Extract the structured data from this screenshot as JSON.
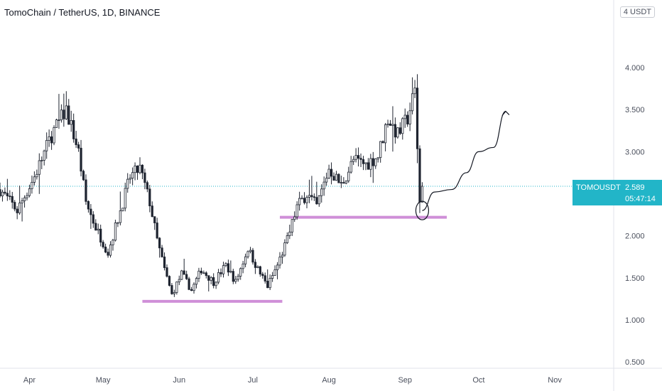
{
  "header": {
    "title": "TomoChain / TetherUS, 1D, BINANCE",
    "unit_label": "USDT",
    "unit_prefix": "4"
  },
  "price_tag": {
    "symbol": "TOMOUSDT",
    "price": "2.589",
    "countdown": "05:47:14",
    "color": "#22b5c8"
  },
  "colors": {
    "candle": "#1f2430",
    "support": "#cf8fd8",
    "price_line": "#22b5c8",
    "axis_text": "#4a4f5c"
  },
  "chart_data": {
    "type": "candlestick",
    "title": "TomoChain / TetherUS, 1D, BINANCE",
    "y_ticks": [
      "4.000",
      "3.500",
      "3.000",
      "2.500",
      "2.000",
      "1.500",
      "1.000",
      "0.500"
    ],
    "y_tick_values": [
      4.0,
      3.5,
      3.0,
      2.5,
      2.0,
      1.5,
      1.0,
      0.5
    ],
    "x_ticks": [
      "Apr",
      "May",
      "Jun",
      "Jul",
      "Aug",
      "Sep",
      "Oct",
      "Nov"
    ],
    "ylim": [
      0.45,
      4.55
    ],
    "x_range": [
      "2021-03-20",
      "2021-11-25"
    ],
    "last_price": 2.589,
    "support_levels": [
      {
        "value": 1.22,
        "from": "2021-05-17",
        "to": "2021-07-13"
      },
      {
        "value": 2.22,
        "from": "2021-07-12",
        "to": "2021-09-18"
      }
    ],
    "waypoints": [
      [
        "2021-03-20",
        2.55
      ],
      [
        "2021-03-27",
        2.3
      ],
      [
        "2021-04-03",
        2.7
      ],
      [
        "2021-04-10",
        3.2
      ],
      [
        "2021-04-16",
        3.5
      ],
      [
        "2021-04-21",
        3.0
      ],
      [
        "2021-04-24",
        2.4
      ],
      [
        "2021-04-28",
        2.1
      ],
      [
        "2021-05-03",
        1.8
      ],
      [
        "2021-05-08",
        2.3
      ],
      [
        "2021-05-12",
        2.7
      ],
      [
        "2021-05-16",
        2.8
      ],
      [
        "2021-05-20",
        2.4
      ],
      [
        "2021-05-23",
        1.95
      ],
      [
        "2021-05-26",
        1.6
      ],
      [
        "2021-05-29",
        1.3
      ],
      [
        "2021-06-02",
        1.55
      ],
      [
        "2021-06-06",
        1.35
      ],
      [
        "2021-06-10",
        1.6
      ],
      [
        "2021-06-15",
        1.45
      ],
      [
        "2021-06-20",
        1.65
      ],
      [
        "2021-06-24",
        1.45
      ],
      [
        "2021-06-29",
        1.85
      ],
      [
        "2021-07-03",
        1.6
      ],
      [
        "2021-07-07",
        1.4
      ],
      [
        "2021-07-11",
        1.65
      ],
      [
        "2021-07-15",
        1.95
      ],
      [
        "2021-07-19",
        2.35
      ],
      [
        "2021-07-23",
        2.5
      ],
      [
        "2021-07-27",
        2.35
      ],
      [
        "2021-08-01",
        2.8
      ],
      [
        "2021-08-06",
        2.6
      ],
      [
        "2021-08-11",
        2.9
      ],
      [
        "2021-08-16",
        2.85
      ],
      [
        "2021-08-21",
        2.95
      ],
      [
        "2021-08-25",
        3.4
      ],
      [
        "2021-08-29",
        3.2
      ],
      [
        "2021-09-02",
        3.4
      ],
      [
        "2021-09-05",
        3.72
      ],
      [
        "2021-09-07",
        2.4
      ],
      [
        "2021-09-08",
        2.589
      ]
    ],
    "projection": [
      [
        "2021-09-08",
        2.3
      ],
      [
        "2021-09-13",
        2.52
      ],
      [
        "2021-09-20",
        2.55
      ],
      [
        "2021-09-26",
        2.75
      ],
      [
        "2021-10-01",
        3.0
      ],
      [
        "2021-10-07",
        3.05
      ],
      [
        "2021-10-12",
        3.48
      ]
    ],
    "circle_marker": {
      "x": "2021-09-08",
      "y": 2.3
    }
  }
}
